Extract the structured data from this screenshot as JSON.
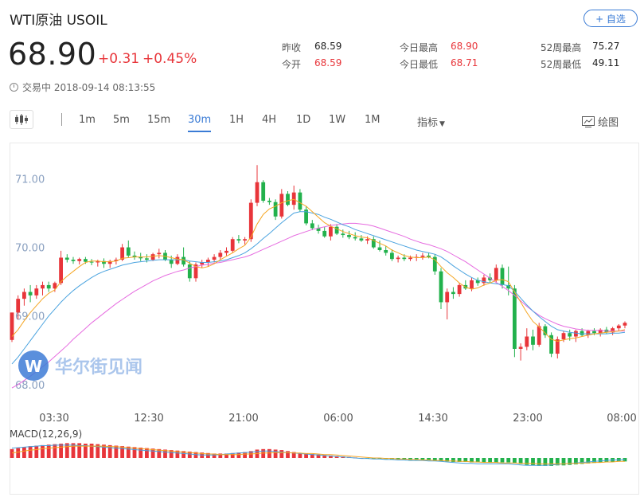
{
  "header": {
    "title": "WTI原油 USOIL",
    "price": "68.90",
    "change": "+0.31",
    "change_pct": "+0.45%",
    "status": "交易中 2018-09-14 08:13:55",
    "follow_label": "+ 自选"
  },
  "stats": [
    {
      "label": "昨收",
      "value": "68.59"
    },
    {
      "label": "今开",
      "value": "68.59"
    },
    {
      "label": "今日最高",
      "value": "68.90"
    },
    {
      "label": "今日最低",
      "value": "68.71"
    },
    {
      "label": "52周最高",
      "value": "75.27"
    },
    {
      "label": "52周最低",
      "value": "49.11"
    }
  ],
  "toolbar": {
    "periods": [
      "1m",
      "5m",
      "15m",
      "30m",
      "1H",
      "4H",
      "1D",
      "1W",
      "1M"
    ],
    "active_period": "30m",
    "indicator_label": "指标",
    "draw_label": "绘图"
  },
  "colors": {
    "up": "#e8353a",
    "down": "#22b14c",
    "accent": "#3a7bd5",
    "ma_short": "#f5a623",
    "ma_mid": "#4aa3df",
    "ma_long": "#e66be0"
  },
  "watermark": "华尔街见闻",
  "chart_data": {
    "type": "candlestick",
    "y_ticks": [
      "71.00",
      "70.00",
      "69.00",
      "68.00"
    ],
    "x_ticks": [
      "03:30",
      "12:30",
      "21:00",
      "06:00",
      "14:30",
      "23:00",
      "08:00"
    ],
    "ylim": [
      67.8,
      71.4
    ],
    "grid": false,
    "candles": [
      [
        68.65,
        69.05,
        68.62,
        69.05
      ],
      [
        69.05,
        69.3,
        68.95,
        69.25
      ],
      [
        69.25,
        69.4,
        69.15,
        69.35
      ],
      [
        69.35,
        69.45,
        69.2,
        69.3
      ],
      [
        69.3,
        69.45,
        69.25,
        69.4
      ],
      [
        69.4,
        69.5,
        69.3,
        69.45
      ],
      [
        69.45,
        69.5,
        69.35,
        69.4
      ],
      [
        69.4,
        69.5,
        69.35,
        69.48
      ],
      [
        69.48,
        69.95,
        69.45,
        69.85
      ],
      [
        69.85,
        69.9,
        69.78,
        69.82
      ],
      [
        69.82,
        69.86,
        69.76,
        69.8
      ],
      [
        69.8,
        69.85,
        69.75,
        69.83
      ],
      [
        69.83,
        69.86,
        69.76,
        69.79
      ],
      [
        69.79,
        69.83,
        69.74,
        69.78
      ],
      [
        69.78,
        69.82,
        69.72,
        69.8
      ],
      [
        69.8,
        69.84,
        69.7,
        69.76
      ],
      [
        69.76,
        69.82,
        69.7,
        69.8
      ],
      [
        69.8,
        69.85,
        69.75,
        69.82
      ],
      [
        69.82,
        70.05,
        69.8,
        70.0
      ],
      [
        70.0,
        70.1,
        69.85,
        69.88
      ],
      [
        69.88,
        69.94,
        69.82,
        69.86
      ],
      [
        69.86,
        69.92,
        69.8,
        69.84
      ],
      [
        69.84,
        69.9,
        69.78,
        69.82
      ],
      [
        69.82,
        69.92,
        69.8,
        69.9
      ],
      [
        69.9,
        69.98,
        69.84,
        69.92
      ],
      [
        69.92,
        69.96,
        69.8,
        69.82
      ],
      [
        69.82,
        69.88,
        69.7,
        69.76
      ],
      [
        69.76,
        69.9,
        69.74,
        69.86
      ],
      [
        69.86,
        70.0,
        69.72,
        69.75
      ],
      [
        69.75,
        69.8,
        69.5,
        69.55
      ],
      [
        69.55,
        69.78,
        69.5,
        69.75
      ],
      [
        69.75,
        69.82,
        69.7,
        69.78
      ],
      [
        69.78,
        69.85,
        69.72,
        69.82
      ],
      [
        69.82,
        69.9,
        69.78,
        69.86
      ],
      [
        69.86,
        69.96,
        69.82,
        69.92
      ],
      [
        69.92,
        70.0,
        69.88,
        69.95
      ],
      [
        69.95,
        70.15,
        69.92,
        70.12
      ],
      [
        70.12,
        70.18,
        70.06,
        70.1
      ],
      [
        70.1,
        70.15,
        70.04,
        70.12
      ],
      [
        70.12,
        70.7,
        70.08,
        70.65
      ],
      [
        70.65,
        71.2,
        70.6,
        70.95
      ],
      [
        70.95,
        70.98,
        70.65,
        70.68
      ],
      [
        70.68,
        70.72,
        70.62,
        70.66
      ],
      [
        70.66,
        70.7,
        70.4,
        70.45
      ],
      [
        70.45,
        70.85,
        70.42,
        70.78
      ],
      [
        70.78,
        70.82,
        70.6,
        70.62
      ],
      [
        70.62,
        70.9,
        70.55,
        70.8
      ],
      [
        70.8,
        70.85,
        70.52,
        70.55
      ],
      [
        70.55,
        70.6,
        70.32,
        70.35
      ],
      [
        70.35,
        70.4,
        70.25,
        70.28
      ],
      [
        70.28,
        70.33,
        70.2,
        70.24
      ],
      [
        70.24,
        70.3,
        70.14,
        70.16
      ],
      [
        70.16,
        70.34,
        70.1,
        70.3
      ],
      [
        70.3,
        70.34,
        70.18,
        70.2
      ],
      [
        70.2,
        70.26,
        70.14,
        70.18
      ],
      [
        70.18,
        70.24,
        70.12,
        70.15
      ],
      [
        70.15,
        70.22,
        70.1,
        70.13
      ],
      [
        70.13,
        70.18,
        70.08,
        70.1
      ],
      [
        70.1,
        70.16,
        70.05,
        70.12
      ],
      [
        70.12,
        70.16,
        69.98,
        70.0
      ],
      [
        70.0,
        70.1,
        69.94,
        69.96
      ],
      [
        69.96,
        70.02,
        69.88,
        69.92
      ],
      [
        69.92,
        69.97,
        69.8,
        69.83
      ],
      [
        69.83,
        69.88,
        69.78,
        69.85
      ],
      [
        69.85,
        69.9,
        69.8,
        69.83
      ],
      [
        69.83,
        69.88,
        69.8,
        69.85
      ],
      [
        69.85,
        69.9,
        69.8,
        69.86
      ],
      [
        69.86,
        69.92,
        69.82,
        69.88
      ],
      [
        69.88,
        69.92,
        69.84,
        69.86
      ],
      [
        69.86,
        69.9,
        69.6,
        69.65
      ],
      [
        69.65,
        69.7,
        69.1,
        69.2
      ],
      [
        69.2,
        69.4,
        68.95,
        69.35
      ],
      [
        69.35,
        69.42,
        69.25,
        69.32
      ],
      [
        69.32,
        69.48,
        69.28,
        69.45
      ],
      [
        69.45,
        69.52,
        69.38,
        69.4
      ],
      [
        69.4,
        69.56,
        69.36,
        69.52
      ],
      [
        69.52,
        69.56,
        69.44,
        69.48
      ],
      [
        69.48,
        69.6,
        69.44,
        69.56
      ],
      [
        69.56,
        69.62,
        69.48,
        69.52
      ],
      [
        69.52,
        69.75,
        69.48,
        69.7
      ],
      [
        69.7,
        69.75,
        69.4,
        69.45
      ],
      [
        69.45,
        69.72,
        69.3,
        69.4
      ],
      [
        69.4,
        69.45,
        68.4,
        68.52
      ],
      [
        68.52,
        68.6,
        68.35,
        68.55
      ],
      [
        68.55,
        68.82,
        68.5,
        68.7
      ],
      [
        68.7,
        68.8,
        68.5,
        68.58
      ],
      [
        68.58,
        68.9,
        68.55,
        68.85
      ],
      [
        68.85,
        68.88,
        68.68,
        68.72
      ],
      [
        68.72,
        68.76,
        68.4,
        68.45
      ],
      [
        68.45,
        68.7,
        68.38,
        68.66
      ],
      [
        68.66,
        68.78,
        68.62,
        68.75
      ],
      [
        68.75,
        68.8,
        68.64,
        68.7
      ],
      [
        68.7,
        68.8,
        68.62,
        68.78
      ],
      [
        68.78,
        68.82,
        68.7,
        68.72
      ],
      [
        68.72,
        68.8,
        68.68,
        68.78
      ],
      [
        68.78,
        68.82,
        68.72,
        68.75
      ],
      [
        68.75,
        68.82,
        68.7,
        68.8
      ],
      [
        68.8,
        68.84,
        68.74,
        68.76
      ],
      [
        68.76,
        68.84,
        68.72,
        68.82
      ],
      [
        68.82,
        68.88,
        68.78,
        68.86
      ],
      [
        68.86,
        68.92,
        68.82,
        68.9
      ]
    ],
    "ma_short": [
      68.7,
      68.8,
      68.93,
      69.05,
      69.15,
      69.25,
      69.33,
      69.38,
      69.5,
      69.58,
      69.65,
      69.72,
      69.78,
      69.8,
      69.8,
      69.79,
      69.79,
      69.8,
      69.84,
      69.85,
      69.86,
      69.86,
      69.86,
      69.87,
      69.88,
      69.87,
      69.85,
      69.83,
      69.82,
      69.77,
      69.72,
      69.7,
      69.72,
      69.76,
      69.82,
      69.87,
      69.92,
      69.98,
      70.03,
      70.15,
      70.34,
      70.48,
      70.56,
      70.6,
      70.65,
      70.68,
      70.7,
      70.65,
      70.6,
      70.52,
      70.44,
      70.36,
      70.31,
      70.27,
      70.23,
      70.2,
      70.17,
      70.15,
      70.14,
      70.1,
      70.06,
      70.02,
      69.96,
      69.92,
      69.88,
      69.86,
      69.85,
      69.85,
      69.86,
      69.82,
      69.72,
      69.63,
      69.56,
      69.48,
      69.42,
      69.39,
      69.41,
      69.45,
      69.48,
      69.52,
      69.53,
      69.5,
      69.35,
      69.2,
      69.05,
      68.92,
      68.84,
      68.75,
      68.66,
      68.63,
      68.65,
      68.67,
      68.68,
      68.7,
      68.72,
      68.74,
      68.75,
      68.76,
      68.77,
      68.78,
      68.8
    ],
    "ma_mid": [
      68.3,
      68.4,
      68.52,
      68.64,
      68.76,
      68.88,
      69.0,
      69.1,
      69.2,
      69.29,
      69.37,
      69.44,
      69.5,
      69.56,
      69.61,
      69.65,
      69.68,
      69.71,
      69.74,
      69.76,
      69.78,
      69.79,
      69.8,
      69.81,
      69.82,
      69.82,
      69.82,
      69.82,
      69.82,
      69.8,
      69.79,
      69.78,
      69.78,
      69.79,
      69.8,
      69.82,
      69.85,
      69.88,
      69.92,
      69.98,
      70.05,
      70.13,
      70.2,
      70.28,
      70.36,
      70.43,
      70.5,
      70.52,
      70.52,
      70.5,
      70.48,
      70.44,
      70.41,
      70.37,
      70.33,
      70.3,
      70.26,
      70.23,
      70.2,
      70.17,
      70.14,
      70.11,
      70.08,
      70.05,
      70.02,
      69.99,
      69.96,
      69.94,
      69.92,
      69.9,
      69.86,
      69.8,
      69.73,
      69.67,
      69.61,
      69.56,
      69.52,
      69.5,
      69.48,
      69.47,
      69.46,
      69.44,
      69.36,
      69.26,
      69.16,
      69.07,
      68.99,
      68.92,
      68.85,
      68.8,
      68.78,
      68.76,
      68.75,
      68.74,
      68.74,
      68.74,
      68.74,
      68.74,
      68.75,
      68.75,
      68.76
    ],
    "ma_long": [
      67.95,
      68.0,
      68.06,
      68.12,
      68.19,
      68.26,
      68.33,
      68.41,
      68.49,
      68.57,
      68.66,
      68.74,
      68.82,
      68.9,
      68.97,
      69.04,
      69.11,
      69.18,
      69.24,
      69.3,
      69.36,
      69.41,
      69.46,
      69.51,
      69.55,
      69.59,
      69.62,
      69.65,
      69.67,
      69.7,
      69.72,
      69.74,
      69.75,
      69.77,
      69.78,
      69.8,
      69.82,
      69.84,
      69.86,
      69.89,
      69.93,
      69.97,
      70.01,
      70.05,
      70.09,
      70.13,
      70.17,
      70.2,
      70.23,
      70.26,
      70.28,
      70.3,
      70.32,
      70.33,
      70.34,
      70.35,
      70.35,
      70.34,
      70.33,
      70.31,
      70.28,
      70.25,
      70.22,
      70.19,
      70.16,
      70.12,
      70.09,
      70.06,
      70.04,
      70.01,
      69.98,
      69.94,
      69.89,
      69.84,
      69.79,
      69.73,
      69.67,
      69.61,
      69.55,
      69.49,
      69.43,
      69.37,
      69.3,
      69.22,
      69.14,
      69.07,
      69.01,
      68.96,
      68.92,
      68.88,
      68.85,
      68.83,
      68.81,
      68.8,
      68.79,
      68.79,
      68.79,
      68.78,
      68.78,
      68.78,
      68.78
    ],
    "macd": {
      "label": "MACD(12,26,9)",
      "hist": [
        0.18,
        0.2,
        0.22,
        0.24,
        0.25,
        0.26,
        0.27,
        0.28,
        0.29,
        0.3,
        0.3,
        0.3,
        0.29,
        0.29,
        0.28,
        0.27,
        0.26,
        0.25,
        0.24,
        0.23,
        0.22,
        0.21,
        0.2,
        0.19,
        0.18,
        0.17,
        0.16,
        0.15,
        0.14,
        0.13,
        0.12,
        0.11,
        0.1,
        0.09,
        0.09,
        0.09,
        0.1,
        0.11,
        0.12,
        0.14,
        0.17,
        0.18,
        0.18,
        0.17,
        0.16,
        0.14,
        0.12,
        0.1,
        0.09,
        0.08,
        0.07,
        0.06,
        0.05,
        0.04,
        0.03,
        0.02,
        0.01,
        0.0,
        -0.01,
        -0.01,
        -0.02,
        -0.02,
        -0.03,
        -0.03,
        -0.04,
        -0.04,
        -0.04,
        -0.05,
        -0.05,
        -0.06,
        -0.07,
        -0.07,
        -0.08,
        -0.08,
        -0.08,
        -0.09,
        -0.09,
        -0.09,
        -0.09,
        -0.09,
        -0.09,
        -0.09,
        -0.1,
        -0.12,
        -0.14,
        -0.15,
        -0.16,
        -0.16,
        -0.16,
        -0.15,
        -0.15,
        -0.14,
        -0.13,
        -0.12,
        -0.11,
        -0.1,
        -0.09,
        -0.08,
        -0.08,
        -0.07,
        -0.07
      ],
      "dif": [
        0.2,
        0.21,
        0.22,
        0.23,
        0.24,
        0.25,
        0.25,
        0.26,
        0.26,
        0.26,
        0.26,
        0.25,
        0.25,
        0.24,
        0.23,
        0.22,
        0.21,
        0.2,
        0.19,
        0.18,
        0.17,
        0.16,
        0.15,
        0.14,
        0.13,
        0.12,
        0.11,
        0.1,
        0.09,
        0.08,
        0.07,
        0.06,
        0.06,
        0.06,
        0.07,
        0.08,
        0.09,
        0.1,
        0.11,
        0.12,
        0.13,
        0.14,
        0.14,
        0.13,
        0.12,
        0.11,
        0.1,
        0.09,
        0.08,
        0.07,
        0.06,
        0.05,
        0.04,
        0.03,
        0.02,
        0.01,
        0.0,
        -0.01,
        -0.01,
        -0.02,
        -0.02,
        -0.03,
        -0.03,
        -0.04,
        -0.04,
        -0.05,
        -0.05,
        -0.05,
        -0.06,
        -0.06,
        -0.07,
        -0.08,
        -0.09,
        -0.1,
        -0.11,
        -0.11,
        -0.12,
        -0.12,
        -0.12,
        -0.12,
        -0.12,
        -0.12,
        -0.13,
        -0.14,
        -0.15,
        -0.15,
        -0.15,
        -0.15,
        -0.14,
        -0.13,
        -0.12,
        -0.11,
        -0.1,
        -0.09,
        -0.08,
        -0.07,
        -0.06,
        -0.05,
        -0.04,
        -0.04,
        -0.03
      ],
      "dea": [
        0.1,
        0.12,
        0.14,
        0.16,
        0.17,
        0.19,
        0.2,
        0.21,
        0.22,
        0.23,
        0.24,
        0.24,
        0.24,
        0.24,
        0.24,
        0.24,
        0.23,
        0.23,
        0.22,
        0.21,
        0.2,
        0.19,
        0.18,
        0.17,
        0.16,
        0.15,
        0.14,
        0.13,
        0.12,
        0.11,
        0.1,
        0.09,
        0.08,
        0.08,
        0.07,
        0.07,
        0.07,
        0.07,
        0.08,
        0.08,
        0.09,
        0.1,
        0.1,
        0.11,
        0.11,
        0.11,
        0.1,
        0.1,
        0.09,
        0.09,
        0.08,
        0.07,
        0.07,
        0.06,
        0.05,
        0.04,
        0.03,
        0.02,
        0.01,
        0.0,
        0.0,
        -0.01,
        -0.01,
        -0.02,
        -0.02,
        -0.03,
        -0.03,
        -0.04,
        -0.04,
        -0.05,
        -0.05,
        -0.06,
        -0.06,
        -0.07,
        -0.07,
        -0.08,
        -0.08,
        -0.09,
        -0.09,
        -0.09,
        -0.1,
        -0.1,
        -0.1,
        -0.11,
        -0.11,
        -0.11,
        -0.12,
        -0.12,
        -0.12,
        -0.12,
        -0.12,
        -0.11,
        -0.11,
        -0.1,
        -0.1,
        -0.09,
        -0.09,
        -0.08,
        -0.08,
        -0.07,
        -0.07
      ]
    }
  }
}
